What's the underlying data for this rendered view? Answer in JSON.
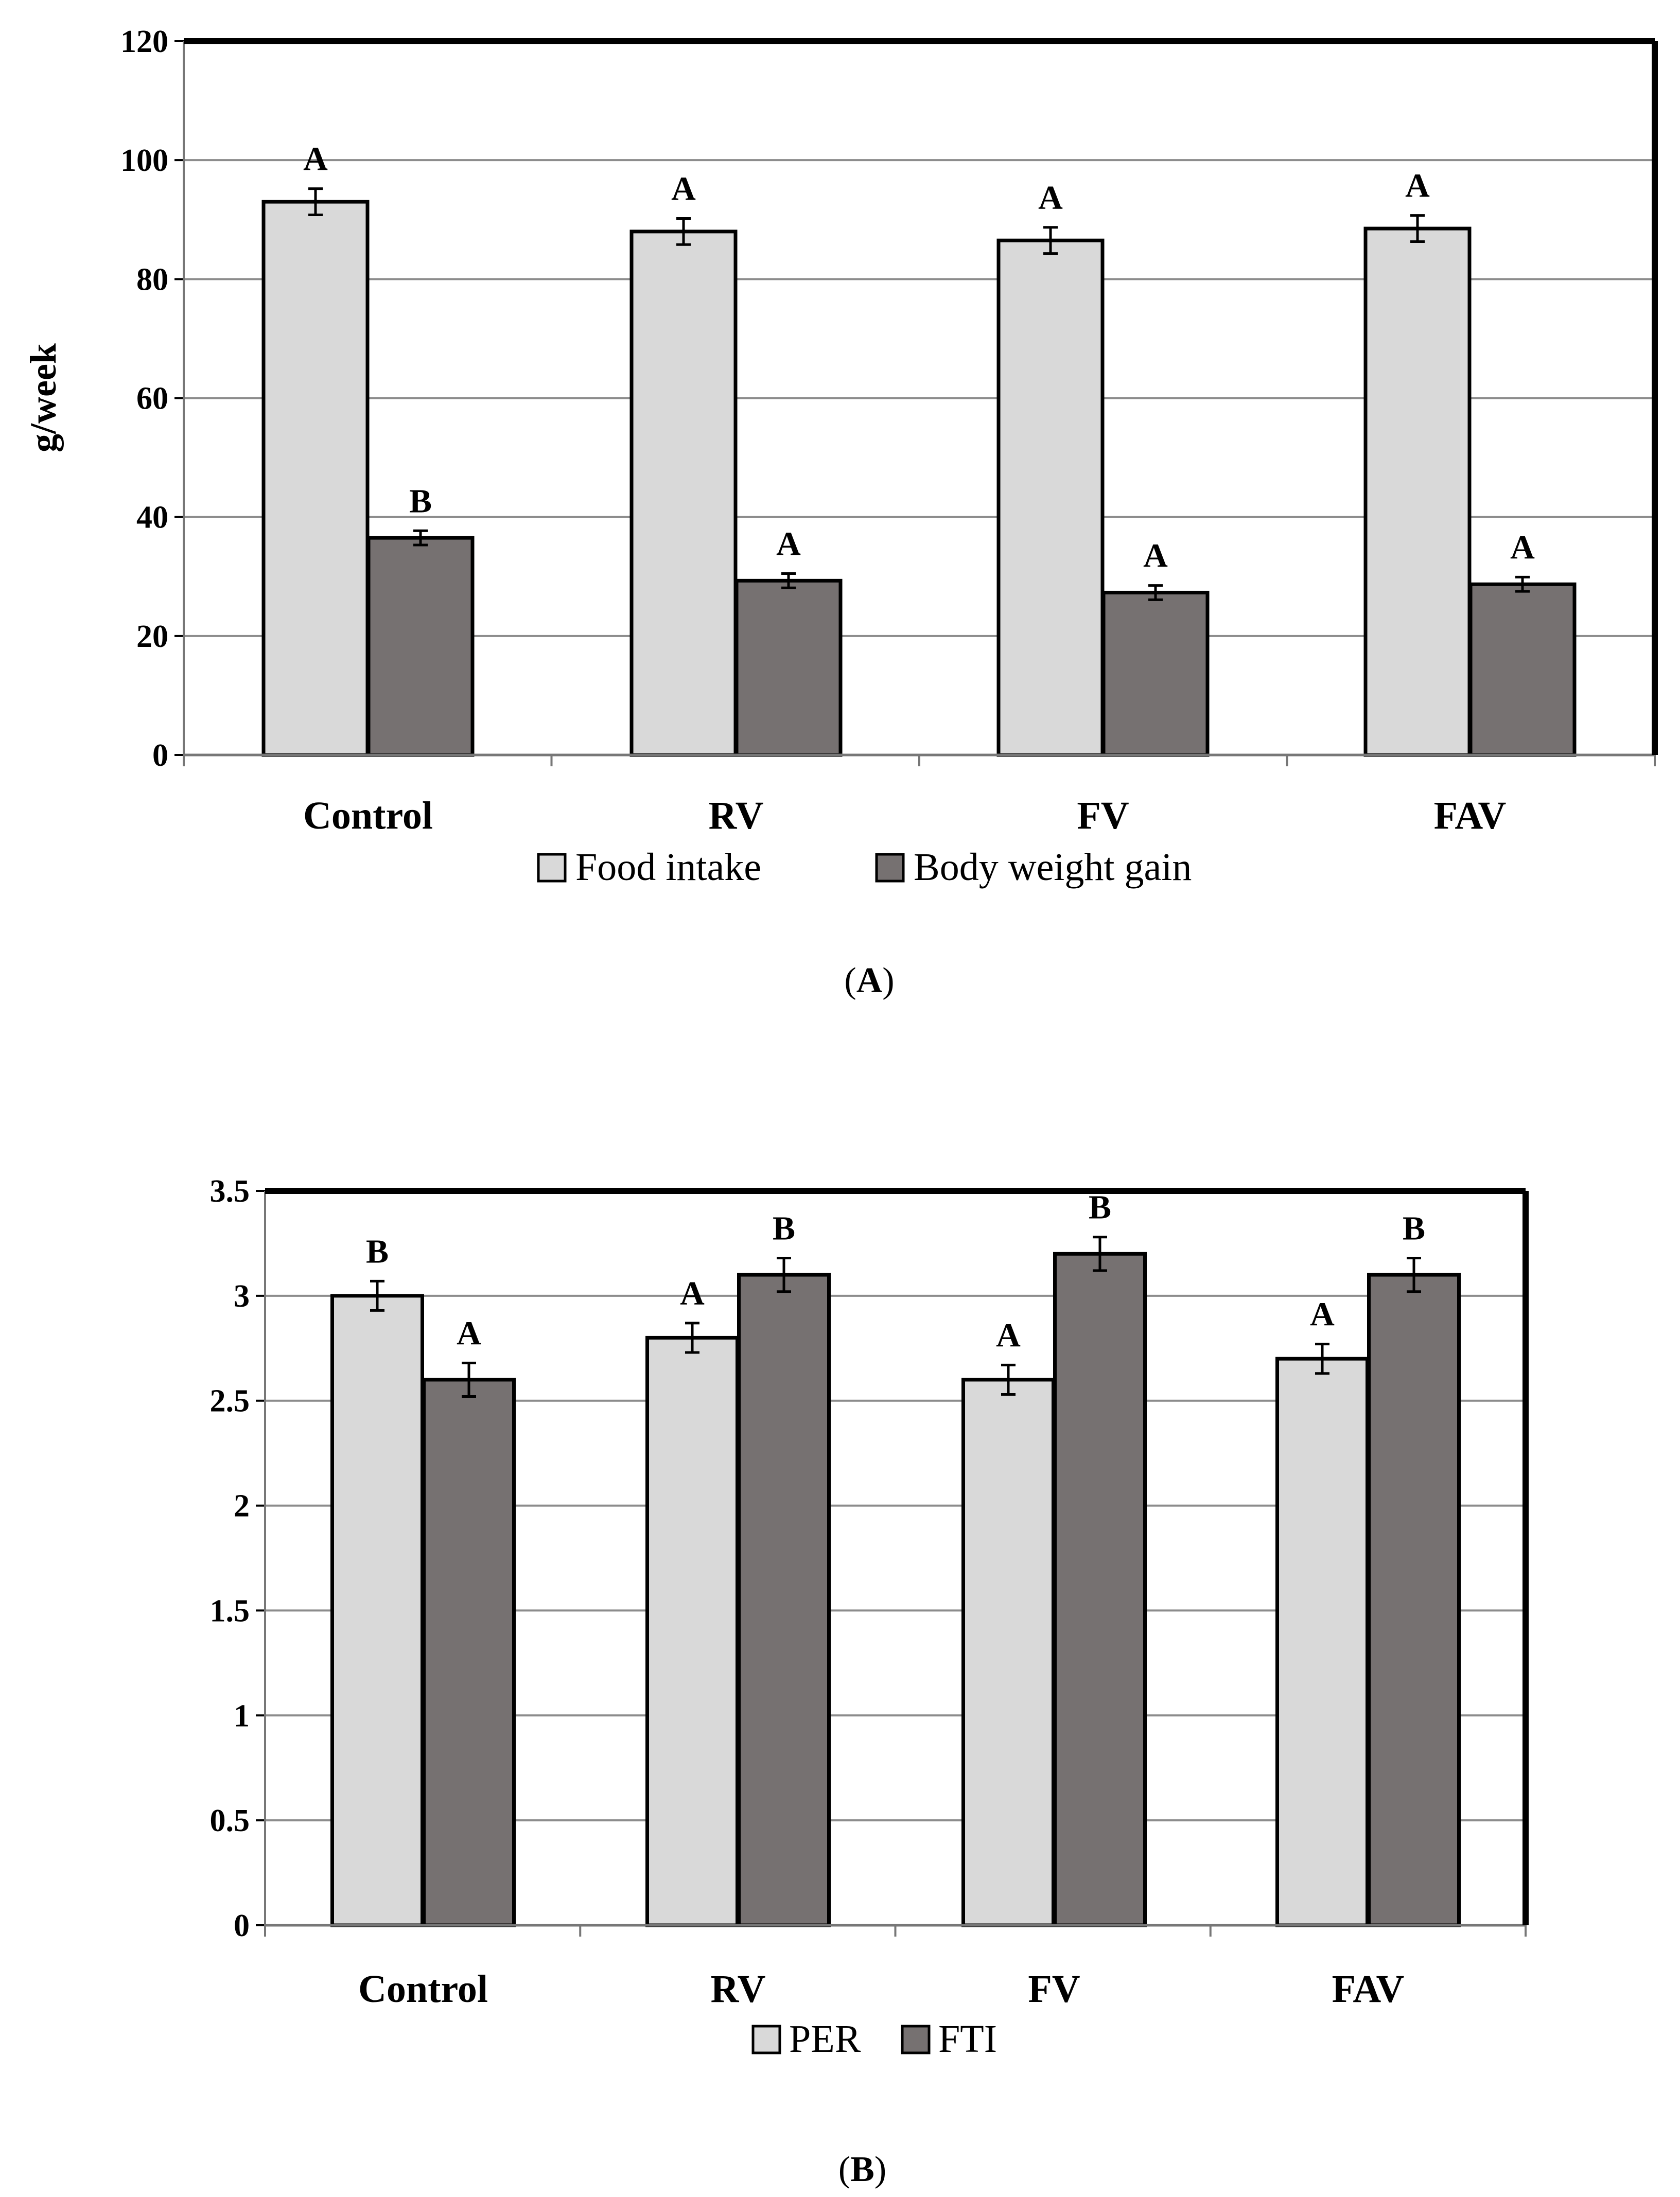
{
  "colors": {
    "light_bar": "#d9d9d9",
    "dark_bar": "#767171",
    "grid": "#8c8c8c",
    "frame": "#000000"
  },
  "chart_data": [
    {
      "type": "bar",
      "panel_label": "A",
      "ylabel": "g/week",
      "ylim": [
        0,
        120
      ],
      "yticks": [
        "0",
        "20",
        "40",
        "60",
        "80",
        "100",
        "120"
      ],
      "grid": true,
      "legend_position": "bottom",
      "categories": [
        "Control",
        "RV",
        "FV",
        "FAV"
      ],
      "series": [
        {
          "name": "Food intake",
          "color": "#d9d9d9",
          "values": [
            93,
            88,
            86.5,
            88.5
          ],
          "errors": [
            2.2,
            2.2,
            2.2,
            2.2
          ],
          "letters": [
            "A",
            "A",
            "A",
            "A"
          ]
        },
        {
          "name": "Body weight gain",
          "color": "#767171",
          "values": [
            36.5,
            29.3,
            27.3,
            28.7
          ],
          "errors": [
            1.2,
            1.2,
            1.2,
            1.2
          ],
          "letters": [
            "B",
            "A",
            "A",
            "A"
          ]
        }
      ]
    },
    {
      "type": "bar",
      "panel_label": "B",
      "ylabel": "",
      "ylim": [
        0,
        3.5
      ],
      "yticks": [
        "0",
        "0.5",
        "1",
        "1.5",
        "2",
        "2.5",
        "3",
        "3.5"
      ],
      "grid": true,
      "legend_position": "bottom",
      "categories": [
        "Control",
        "RV",
        "FV",
        "FAV"
      ],
      "series": [
        {
          "name": "PER",
          "color": "#d9d9d9",
          "values": [
            3.0,
            2.8,
            2.6,
            2.7
          ],
          "errors": [
            0.07,
            0.07,
            0.07,
            0.07
          ],
          "letters": [
            "B",
            "A",
            "A",
            "A"
          ]
        },
        {
          "name": "FTI",
          "color": "#767171",
          "values": [
            2.6,
            3.1,
            3.2,
            3.1
          ],
          "errors": [
            0.08,
            0.08,
            0.08,
            0.08
          ],
          "letters": [
            "A",
            "B",
            "B",
            "B"
          ]
        }
      ]
    }
  ]
}
